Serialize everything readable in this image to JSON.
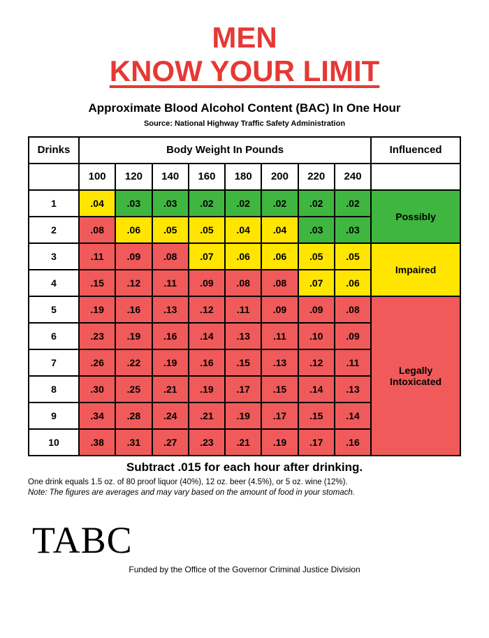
{
  "title_line1": "MEN",
  "title_line2": "KNOW YOUR LIMIT",
  "subtitle": "Approximate Blood Alcohol Content (BAC) In One Hour",
  "source": "Source: National Highway Traffic Safety Administration",
  "colors": {
    "title": "#e53935",
    "green": "#3fb63f",
    "yellow": "#ffe500",
    "red": "#f05a5a",
    "white": "#ffffff",
    "border": "#000000"
  },
  "table": {
    "drinks_header": "Drinks",
    "weight_header": "Body Weight In Pounds",
    "influenced_header": "Influenced",
    "weights": [
      "100",
      "120",
      "140",
      "160",
      "180",
      "200",
      "220",
      "240"
    ],
    "categories": [
      {
        "label": "Possibly",
        "color": "green",
        "rowspan": 2
      },
      {
        "label": "Impaired",
        "color": "yellow",
        "rowspan": 2
      },
      {
        "label": "Legally Intoxicated",
        "color": "red",
        "rowspan": 6
      }
    ],
    "rows": [
      {
        "drinks": "1",
        "cells": [
          {
            "v": ".04",
            "c": "yellow"
          },
          {
            "v": ".03",
            "c": "green"
          },
          {
            "v": ".03",
            "c": "green"
          },
          {
            "v": ".02",
            "c": "green"
          },
          {
            "v": ".02",
            "c": "green"
          },
          {
            "v": ".02",
            "c": "green"
          },
          {
            "v": ".02",
            "c": "green"
          },
          {
            "v": ".02",
            "c": "green"
          }
        ]
      },
      {
        "drinks": "2",
        "cells": [
          {
            "v": ".08",
            "c": "red"
          },
          {
            "v": ".06",
            "c": "yellow"
          },
          {
            "v": ".05",
            "c": "yellow"
          },
          {
            "v": ".05",
            "c": "yellow"
          },
          {
            "v": ".04",
            "c": "yellow"
          },
          {
            "v": ".04",
            "c": "yellow"
          },
          {
            "v": ".03",
            "c": "green"
          },
          {
            "v": ".03",
            "c": "green"
          }
        ]
      },
      {
        "drinks": "3",
        "cells": [
          {
            "v": ".11",
            "c": "red"
          },
          {
            "v": ".09",
            "c": "red"
          },
          {
            "v": ".08",
            "c": "red"
          },
          {
            "v": ".07",
            "c": "yellow"
          },
          {
            "v": ".06",
            "c": "yellow"
          },
          {
            "v": ".06",
            "c": "yellow"
          },
          {
            "v": ".05",
            "c": "yellow"
          },
          {
            "v": ".05",
            "c": "yellow"
          }
        ]
      },
      {
        "drinks": "4",
        "cells": [
          {
            "v": ".15",
            "c": "red"
          },
          {
            "v": ".12",
            "c": "red"
          },
          {
            "v": ".11",
            "c": "red"
          },
          {
            "v": ".09",
            "c": "red"
          },
          {
            "v": ".08",
            "c": "red"
          },
          {
            "v": ".08",
            "c": "red"
          },
          {
            "v": ".07",
            "c": "yellow"
          },
          {
            "v": ".06",
            "c": "yellow"
          }
        ]
      },
      {
        "drinks": "5",
        "cells": [
          {
            "v": ".19",
            "c": "red"
          },
          {
            "v": ".16",
            "c": "red"
          },
          {
            "v": ".13",
            "c": "red"
          },
          {
            "v": ".12",
            "c": "red"
          },
          {
            "v": ".11",
            "c": "red"
          },
          {
            "v": ".09",
            "c": "red"
          },
          {
            "v": ".09",
            "c": "red"
          },
          {
            "v": ".08",
            "c": "red"
          }
        ]
      },
      {
        "drinks": "6",
        "cells": [
          {
            "v": ".23",
            "c": "red"
          },
          {
            "v": ".19",
            "c": "red"
          },
          {
            "v": ".16",
            "c": "red"
          },
          {
            "v": ".14",
            "c": "red"
          },
          {
            "v": ".13",
            "c": "red"
          },
          {
            "v": ".11",
            "c": "red"
          },
          {
            "v": ".10",
            "c": "red"
          },
          {
            "v": ".09",
            "c": "red"
          }
        ]
      },
      {
        "drinks": "7",
        "cells": [
          {
            "v": ".26",
            "c": "red"
          },
          {
            "v": ".22",
            "c": "red"
          },
          {
            "v": ".19",
            "c": "red"
          },
          {
            "v": ".16",
            "c": "red"
          },
          {
            "v": ".15",
            "c": "red"
          },
          {
            "v": ".13",
            "c": "red"
          },
          {
            "v": ".12",
            "c": "red"
          },
          {
            "v": ".11",
            "c": "red"
          }
        ]
      },
      {
        "drinks": "8",
        "cells": [
          {
            "v": ".30",
            "c": "red"
          },
          {
            "v": ".25",
            "c": "red"
          },
          {
            "v": ".21",
            "c": "red"
          },
          {
            "v": ".19",
            "c": "red"
          },
          {
            "v": ".17",
            "c": "red"
          },
          {
            "v": ".15",
            "c": "red"
          },
          {
            "v": ".14",
            "c": "red"
          },
          {
            "v": ".13",
            "c": "red"
          }
        ]
      },
      {
        "drinks": "9",
        "cells": [
          {
            "v": ".34",
            "c": "red"
          },
          {
            "v": ".28",
            "c": "red"
          },
          {
            "v": ".24",
            "c": "red"
          },
          {
            "v": ".21",
            "c": "red"
          },
          {
            "v": ".19",
            "c": "red"
          },
          {
            "v": ".17",
            "c": "red"
          },
          {
            "v": ".15",
            "c": "red"
          },
          {
            "v": ".14",
            "c": "red"
          }
        ]
      },
      {
        "drinks": "10",
        "cells": [
          {
            "v": ".38",
            "c": "red"
          },
          {
            "v": ".31",
            "c": "red"
          },
          {
            "v": ".27",
            "c": "red"
          },
          {
            "v": ".23",
            "c": "red"
          },
          {
            "v": ".21",
            "c": "red"
          },
          {
            "v": ".19",
            "c": "red"
          },
          {
            "v": ".17",
            "c": "red"
          },
          {
            "v": ".16",
            "c": "red"
          }
        ]
      }
    ]
  },
  "subtract": "Subtract .015 for each hour after drinking.",
  "drink_def": "One drink equals 1.5 oz. of 80 proof liquor (40%), 12 oz. beer (4.5%), or 5 oz. wine (12%).",
  "note": "Note: The figures are averages and may vary based on the amount of food in your stomach.",
  "logo": "TABC",
  "funded": "Funded by the Office of the Governor Criminal Justice Division"
}
